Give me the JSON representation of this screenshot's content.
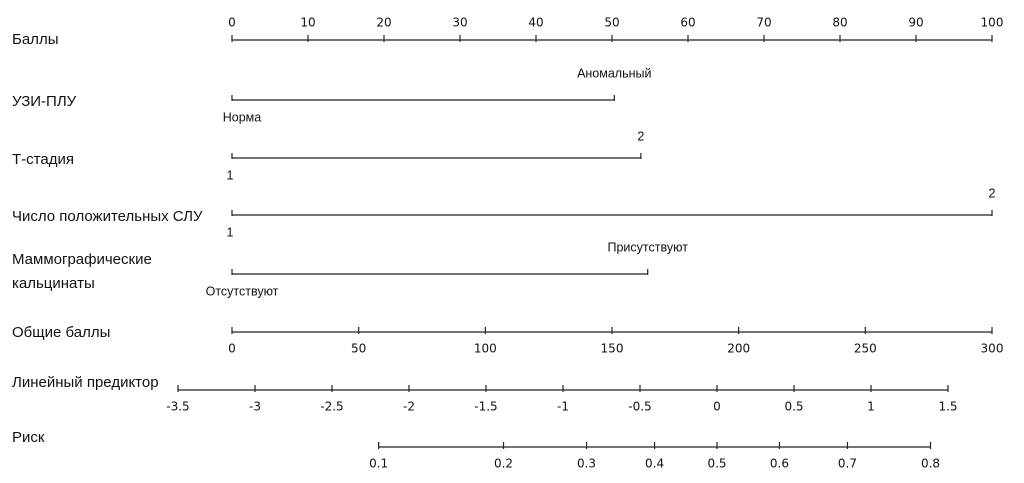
{
  "chart_data": {
    "type": "nomogram",
    "points": {
      "label": "Баллы",
      "xlim": [
        0,
        100
      ],
      "xticks": [
        0,
        10,
        20,
        30,
        40,
        50,
        60,
        70,
        80,
        90,
        100
      ]
    },
    "variables": [
      {
        "name": [
          "УЗИ-ПЛУ"
        ],
        "levels": [
          "Норма",
          "Аномальный"
        ],
        "points": [
          0,
          50.3
        ]
      },
      {
        "name": [
          "Т-стадия"
        ],
        "levels": [
          "1",
          "2"
        ],
        "points": [
          0,
          53.8
        ]
      },
      {
        "name": [
          "Число положительных СЛУ"
        ],
        "levels": [
          "1",
          "2"
        ],
        "points": [
          0,
          100
        ]
      },
      {
        "name": [
          "Маммографические",
          "кальцинаты"
        ],
        "levels": [
          "Отсутствуют",
          "Присутствуют"
        ],
        "points": [
          0,
          54.7
        ]
      }
    ],
    "total_points": {
      "label": "Общие баллы",
      "xlim": [
        0,
        300
      ],
      "xticks": [
        0,
        50,
        100,
        150,
        200,
        250,
        300
      ]
    },
    "linear_predictor": {
      "label": "Линейный предиктор",
      "xlim": [
        -3.5,
        1.5
      ],
      "xticks": [
        -3.5,
        -3,
        -2.5,
        -2,
        -1.5,
        -1,
        -0.5,
        0,
        0.5,
        1,
        1.5
      ]
    },
    "risk": {
      "label": "Риск",
      "xticks": [
        0.1,
        0.2,
        0.3,
        0.4,
        0.5,
        0.6,
        0.7,
        0.8
      ]
    }
  }
}
